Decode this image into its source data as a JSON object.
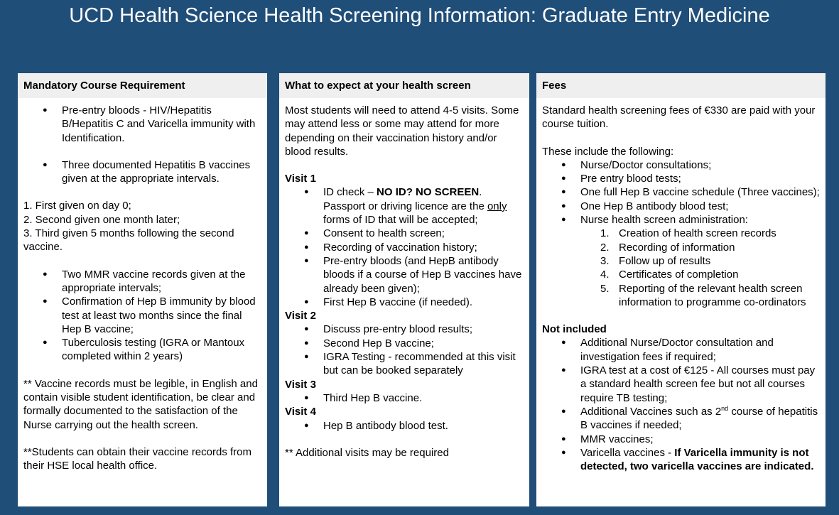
{
  "page_title": "UCD Health Science Health Screening Information: Graduate Entry Medicine",
  "colors": {
    "background": "#1f4e79",
    "panel_header": "#efefef"
  },
  "panels": [
    {
      "title": "Mandatory Course Requirement",
      "blocks": [
        {
          "type": "ul",
          "indent": 1,
          "items": [
            [
              {
                "t": "Pre-entry bloods - HIV/Hepatitis B/Hepatitis C and Varicella immunity with Identification."
              }
            ]
          ]
        },
        {
          "type": "gap"
        },
        {
          "type": "ul",
          "indent": 1,
          "items": [
            [
              {
                "t": "Three documented Hepatitis B vaccines given at the appropriate intervals."
              }
            ]
          ]
        },
        {
          "type": "gap"
        },
        {
          "type": "p",
          "segs": [
            {
              "t": "1. First given on day 0;"
            }
          ]
        },
        {
          "type": "p",
          "segs": [
            {
              "t": "2. Second given one month later;"
            }
          ]
        },
        {
          "type": "p",
          "segs": [
            {
              "t": "3. Third given 5 months following the second vaccine."
            }
          ]
        },
        {
          "type": "gap"
        },
        {
          "type": "ul",
          "indent": 1,
          "items": [
            [
              {
                "t": "Two MMR vaccine records given at the appropriate intervals;"
              }
            ],
            [
              {
                "t": "Confirmation of Hep B immunity by blood test at least two months since the final Hep B vaccine;"
              }
            ],
            [
              {
                "t": "Tuberculosis testing (IGRA or Mantoux completed within 2 years)"
              }
            ]
          ]
        },
        {
          "type": "gap"
        },
        {
          "type": "p",
          "segs": [
            {
              "t": "** Vaccine records must be legible, in English and contain visible student identification, be clear and formally documented to the satisfaction of the Nurse carrying out the health screen."
            }
          ]
        },
        {
          "type": "gap"
        },
        {
          "type": "p",
          "segs": [
            {
              "t": "**Students can obtain their vaccine records from their HSE local health office."
            }
          ]
        }
      ]
    },
    {
      "title": "What to expect at your health screen",
      "blocks": [
        {
          "type": "p",
          "segs": [
            {
              "t": "Most students will need to attend 4-5 visits. Some may attend less or some may attend for more depending on their vaccination history and/or blood results."
            }
          ]
        },
        {
          "type": "gap"
        },
        {
          "type": "p",
          "segs": [
            {
              "t": "Visit 1",
              "b": true
            }
          ]
        },
        {
          "type": "ul",
          "indent": 1,
          "items": [
            [
              {
                "t": "ID check – "
              },
              {
                "t": "NO ID? NO SCREEN",
                "b": true
              },
              {
                "t": ". Passport or driving licence are the "
              },
              {
                "t": "only",
                "u": true
              },
              {
                "t": " forms of ID that will be accepted;"
              }
            ],
            [
              {
                "t": "Consent to health screen;"
              }
            ],
            [
              {
                "t": "Recording of vaccination history;"
              }
            ],
            [
              {
                "t": "Pre-entry bloods (and HepB antibody bloods if a course of Hep B vaccines have already been given);"
              }
            ],
            [
              {
                "t": "First Hep B vaccine (if needed)."
              }
            ]
          ]
        },
        {
          "type": "p",
          "segs": [
            {
              "t": "Visit 2",
              "b": true
            }
          ]
        },
        {
          "type": "ul",
          "indent": 1,
          "items": [
            [
              {
                "t": "Discuss pre-entry blood results;"
              }
            ],
            [
              {
                "t": "Second Hep B vaccine;"
              }
            ],
            [
              {
                "t": "IGRA Testing - recommended at this visit but can be booked separately"
              }
            ]
          ]
        },
        {
          "type": "p",
          "segs": [
            {
              "t": "Visit 3",
              "b": true
            }
          ]
        },
        {
          "type": "ul",
          "indent": 1,
          "items": [
            [
              {
                "t": "Third Hep B vaccine."
              }
            ]
          ]
        },
        {
          "type": "p",
          "segs": [
            {
              "t": "Visit 4",
              "b": true
            }
          ]
        },
        {
          "type": "ul",
          "indent": 1,
          "items": [
            [
              {
                "t": "Hep B antibody blood test."
              }
            ]
          ]
        },
        {
          "type": "gap"
        },
        {
          "type": "p",
          "segs": [
            {
              "t": "** Additional visits may be required"
            }
          ]
        }
      ]
    },
    {
      "title": "Fees",
      "blocks": [
        {
          "type": "p",
          "segs": [
            {
              "t": "Standard health screening fees of €330 are paid with your course tuition."
            }
          ]
        },
        {
          "type": "gap"
        },
        {
          "type": "p",
          "segs": [
            {
              "t": "These include the following:"
            }
          ]
        },
        {
          "type": "ul",
          "indent": 1,
          "items": [
            [
              {
                "t": "Nurse/Doctor consultations;"
              }
            ],
            [
              {
                "t": "Pre entry blood tests;"
              }
            ],
            [
              {
                "t": "One full Hep B vaccine schedule (Three vaccines);"
              }
            ],
            [
              {
                "t": "One Hep B antibody blood test;"
              }
            ],
            [
              {
                "t": "Nurse health screen administration:"
              }
            ]
          ]
        },
        {
          "type": "ol",
          "indent": 2,
          "items": [
            [
              {
                "t": "Creation of health screen records"
              }
            ],
            [
              {
                "t": "Recording of information"
              }
            ],
            [
              {
                "t": "Follow up of results"
              }
            ],
            [
              {
                "t": "Certificates of completion"
              }
            ],
            [
              {
                "t": "Reporting of the relevant health screen information to programme co-ordinators"
              }
            ]
          ]
        },
        {
          "type": "gap"
        },
        {
          "type": "p",
          "segs": [
            {
              "t": "Not included",
              "b": true
            }
          ]
        },
        {
          "type": "ul",
          "indent": 1,
          "items": [
            [
              {
                "t": "Additional Nurse/Doctor consultation and investigation fees if required;"
              }
            ],
            [
              {
                "t": "IGRA test at a cost of €125 - All courses must pay a standard health screen fee but not all courses require TB testing;"
              }
            ],
            [
              {
                "t": "Additional Vaccines such as 2"
              },
              {
                "t": "nd",
                "sup": true
              },
              {
                "t": " course of hepatitis B vaccines if needed;"
              }
            ],
            [
              {
                "t": "MMR vaccines;"
              }
            ],
            [
              {
                "t": "Varicella vaccines - "
              },
              {
                "t": "If Varicella immunity is not detected, two varicella vaccines are indicated.",
                "b": true
              }
            ]
          ]
        }
      ]
    }
  ]
}
